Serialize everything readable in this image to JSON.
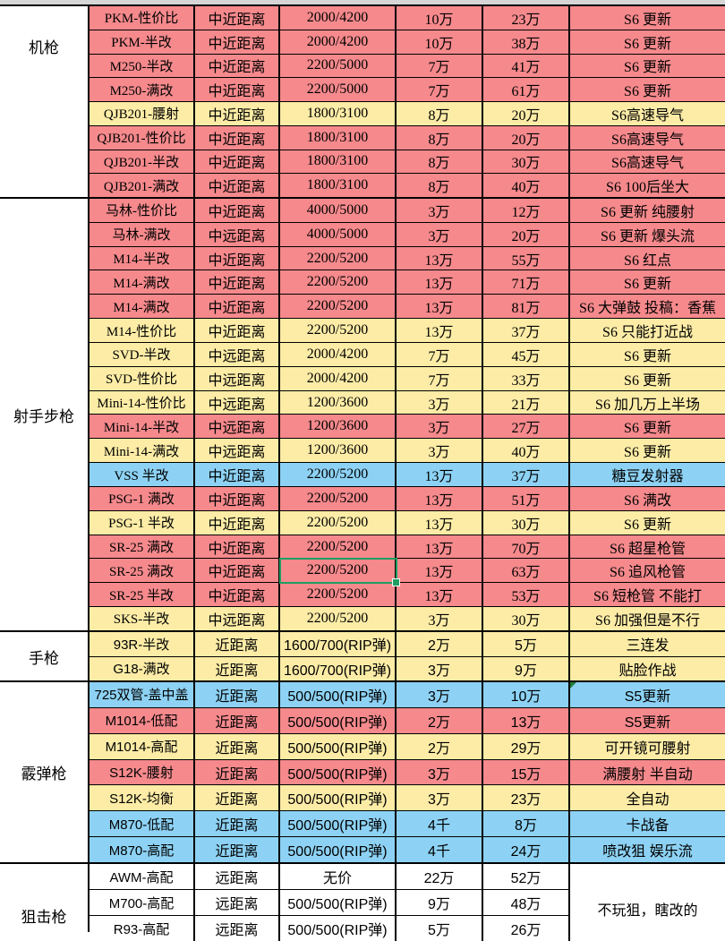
{
  "app": {
    "kind": "spreadsheet-weapon-table"
  },
  "colors": {
    "red": "#F5898C",
    "yellow": "#FCECA6",
    "blue": "#8DD2F4",
    "white": "#FFFFFF",
    "selection_green": "#1E9E62",
    "flag_green": "#217C38",
    "grid_black": "#000000",
    "top_strip_gray": "#D6D6D6"
  },
  "sections": [
    {
      "category": "机枪",
      "font_class": "serif",
      "label_position": "top",
      "rows": [
        {
          "name": "PKM-性价比",
          "range": "中近距离",
          "capacity": "2000/4200",
          "price1": "10万",
          "price2": "23万",
          "note": "S6 更新",
          "color": "red"
        },
        {
          "name": "PKM-半改",
          "range": "中近距离",
          "capacity": "2000/4200",
          "price1": "10万",
          "price2": "38万",
          "note": "S6 更新",
          "color": "red"
        },
        {
          "name": "M250-半改",
          "range": "中近距离",
          "capacity": "2200/5000",
          "price1": "7万",
          "price2": "41万",
          "note": "S6 更新",
          "color": "red"
        },
        {
          "name": "M250-满改",
          "range": "中近距离",
          "capacity": "2200/5000",
          "price1": "7万",
          "price2": "61万",
          "note": "S6 更新",
          "color": "red"
        },
        {
          "name": "QJB201-腰射",
          "range": "中近距离",
          "capacity": "1800/3100",
          "price1": "8万",
          "price2": "20万",
          "note": "S6高速导气",
          "color": "yellow"
        },
        {
          "name": "QJB201-性价比",
          "range": "中近距离",
          "capacity": "1800/3100",
          "price1": "8万",
          "price2": "20万",
          "note": "S6高速导气",
          "color": "red"
        },
        {
          "name": "QJB201-半改",
          "range": "中近距离",
          "capacity": "1800/3100",
          "price1": "8万",
          "price2": "30万",
          "note": "S6高速导气",
          "color": "red"
        },
        {
          "name": "QJB201-满改",
          "range": "中近距离",
          "capacity": "1800/3100",
          "price1": "8万",
          "price2": "40万",
          "note": "S6 100后坐大",
          "color": "red"
        }
      ]
    },
    {
      "category": "射手步枪",
      "font_class": "serif",
      "label_position": "center",
      "rows": [
        {
          "name": "马林-性价比",
          "range": "中近距离",
          "capacity": "4000/5000",
          "price1": "3万",
          "price2": "12万",
          "note": "S6 更新 纯腰射",
          "color": "red"
        },
        {
          "name": "马林-满改",
          "range": "中远距离",
          "capacity": "4000/5000",
          "price1": "3万",
          "price2": "20万",
          "note": "S6 更新 爆头流",
          "color": "red"
        },
        {
          "name": "M14-半改",
          "range": "中近距离",
          "capacity": "2200/5200",
          "price1": "13万",
          "price2": "55万",
          "note": "S6 红点",
          "color": "red"
        },
        {
          "name": "M14-满改",
          "range": "中近距离",
          "capacity": "2200/5200",
          "price1": "13万",
          "price2": "71万",
          "note": "S6 更新",
          "color": "red"
        },
        {
          "name": "M14-满改",
          "range": "中近距离",
          "capacity": "2200/5200",
          "price1": "13万",
          "price2": "81万",
          "note": "S6 大弹鼓  投稿：香蕉",
          "color": "red"
        },
        {
          "name": "M14-性价比",
          "range": "中近距离",
          "capacity": "2200/5200",
          "price1": "13万",
          "price2": "37万",
          "note": "S6 只能打近战",
          "color": "yellow"
        },
        {
          "name": "SVD-半改",
          "range": "中远距离",
          "capacity": "2000/4200",
          "price1": "7万",
          "price2": "45万",
          "note": "S6 更新",
          "color": "yellow"
        },
        {
          "name": "SVD-性价比",
          "range": "中远距离",
          "capacity": "2000/4200",
          "price1": "7万",
          "price2": "33万",
          "note": "S6 更新",
          "color": "yellow"
        },
        {
          "name": "Mini-14-性价比",
          "range": "中远距离",
          "capacity": "1200/3600",
          "price1": "3万",
          "price2": "21万",
          "note": "S6 加几万上半场",
          "color": "yellow"
        },
        {
          "name": "Mini-14-半改",
          "range": "中远距离",
          "capacity": "1200/3600",
          "price1": "3万",
          "price2": "27万",
          "note": "S6 更新",
          "color": "red"
        },
        {
          "name": "Mini-14-满改",
          "range": "中远距离",
          "capacity": "1200/3600",
          "price1": "3万",
          "price2": "40万",
          "note": "S6 更新",
          "color": "yellow"
        },
        {
          "name": "VSS 半改",
          "range": "中近距离",
          "capacity": "2200/5200",
          "price1": "13万",
          "price2": "37万",
          "note": "糖豆发射器",
          "color": "blue"
        },
        {
          "name": "PSG-1 满改",
          "range": "中近距离",
          "capacity": "2200/5200",
          "price1": "13万",
          "price2": "51万",
          "note": "S6 满改",
          "color": "red"
        },
        {
          "name": "PSG-1 半改",
          "range": "中近距离",
          "capacity": "2200/5200",
          "price1": "13万",
          "price2": "30万",
          "note": "S6 更新",
          "color": "yellow"
        },
        {
          "name": "SR-25 满改",
          "range": "中近距离",
          "capacity": "2200/5200",
          "price1": "13万",
          "price2": "70万",
          "note": "S6 超星枪管",
          "color": "red"
        },
        {
          "name": "SR-25 满改",
          "range": "中近距离",
          "capacity": "2200/5200",
          "price1": "13万",
          "price2": "63万",
          "note": "S6 追风枪管",
          "color": "red"
        },
        {
          "name": "SR-25 半改",
          "range": "中近距离",
          "capacity": "2200/5200",
          "price1": "13万",
          "price2": "53万",
          "note": "S6 短枪管 不能打",
          "color": "red"
        },
        {
          "name": "SKS-半改",
          "range": "中远距离",
          "capacity": "2200/5200",
          "price1": "3万",
          "price2": "30万",
          "note": "S6 加强但是不行",
          "color": "yellow"
        }
      ]
    },
    {
      "category": "手枪",
      "font_class": "sans",
      "label_position": "center",
      "rows": [
        {
          "name": "93R-半改",
          "range": "近距离",
          "capacity": "1600/700(RIP弹)",
          "price1": "2万",
          "price2": "5万",
          "note": "三连发",
          "color": "yellow"
        },
        {
          "name": "G18-满改",
          "range": "近距离",
          "capacity": "1600/700(RIP弹)",
          "price1": "3万",
          "price2": "9万",
          "note": "贴脸作战",
          "color": "yellow"
        }
      ]
    },
    {
      "category": "霰弹枪",
      "font_class": "sans",
      "label_position": "center",
      "rows": [
        {
          "name": "725双管-盖中盖",
          "range": "近距离",
          "capacity": "500/500(RIP弹)",
          "price1": "3万",
          "price2": "10万",
          "note": "S5更新",
          "color": "blue"
        },
        {
          "name": "M1014-低配",
          "range": "近距离",
          "capacity": "500/500(RIP弹)",
          "price1": "2万",
          "price2": "13万",
          "note": "S5更新",
          "color": "red"
        },
        {
          "name": "M1014-高配",
          "range": "近距离",
          "capacity": "500/500(RIP弹)",
          "price1": "2万",
          "price2": "29万",
          "note": "可开镜可腰射",
          "color": "yellow"
        },
        {
          "name": "S12K-腰射",
          "range": "近距离",
          "capacity": "500/500(RIP弹)",
          "price1": "3万",
          "price2": "15万",
          "note": "满腰射 半自动",
          "color": "red"
        },
        {
          "name": "S12K-均衡",
          "range": "近距离",
          "capacity": "500/500(RIP弹)",
          "price1": "3万",
          "price2": "23万",
          "note": "全自动",
          "color": "yellow"
        },
        {
          "name": "M870-低配",
          "range": "近距离",
          "capacity": "500/500(RIP弹)",
          "price1": "4千",
          "price2": "8万",
          "note": "卡战备",
          "color": "blue"
        },
        {
          "name": "M870-高配",
          "range": "近距离",
          "capacity": "500/500(RIP弹)",
          "price1": "4千",
          "price2": "24万",
          "note": "喷改狙 娱乐流",
          "color": "blue"
        }
      ]
    },
    {
      "category": "狙击枪",
      "font_class": "sans",
      "label_position": "bottom",
      "merged_note": "不玩狙，瞎改的",
      "rows": [
        {
          "name": "AWM-高配",
          "range": "远距离",
          "capacity": "无价",
          "price1": "22万",
          "price2": "52万",
          "color": "white"
        },
        {
          "name": "M700-高配",
          "range": "远距离",
          "capacity": "500/500(RIP弹)",
          "price1": "9万",
          "price2": "48万",
          "color": "white"
        },
        {
          "name": "R93-高配",
          "range": "远距离",
          "capacity": "500/500(RIP弹)",
          "price1": "5万",
          "price2": "26万",
          "color": "white"
        }
      ]
    }
  ],
  "selection": {
    "section": 1,
    "row": 15,
    "col": "capacity"
  },
  "flag": {
    "section": 3,
    "row": 0,
    "col": "note"
  }
}
